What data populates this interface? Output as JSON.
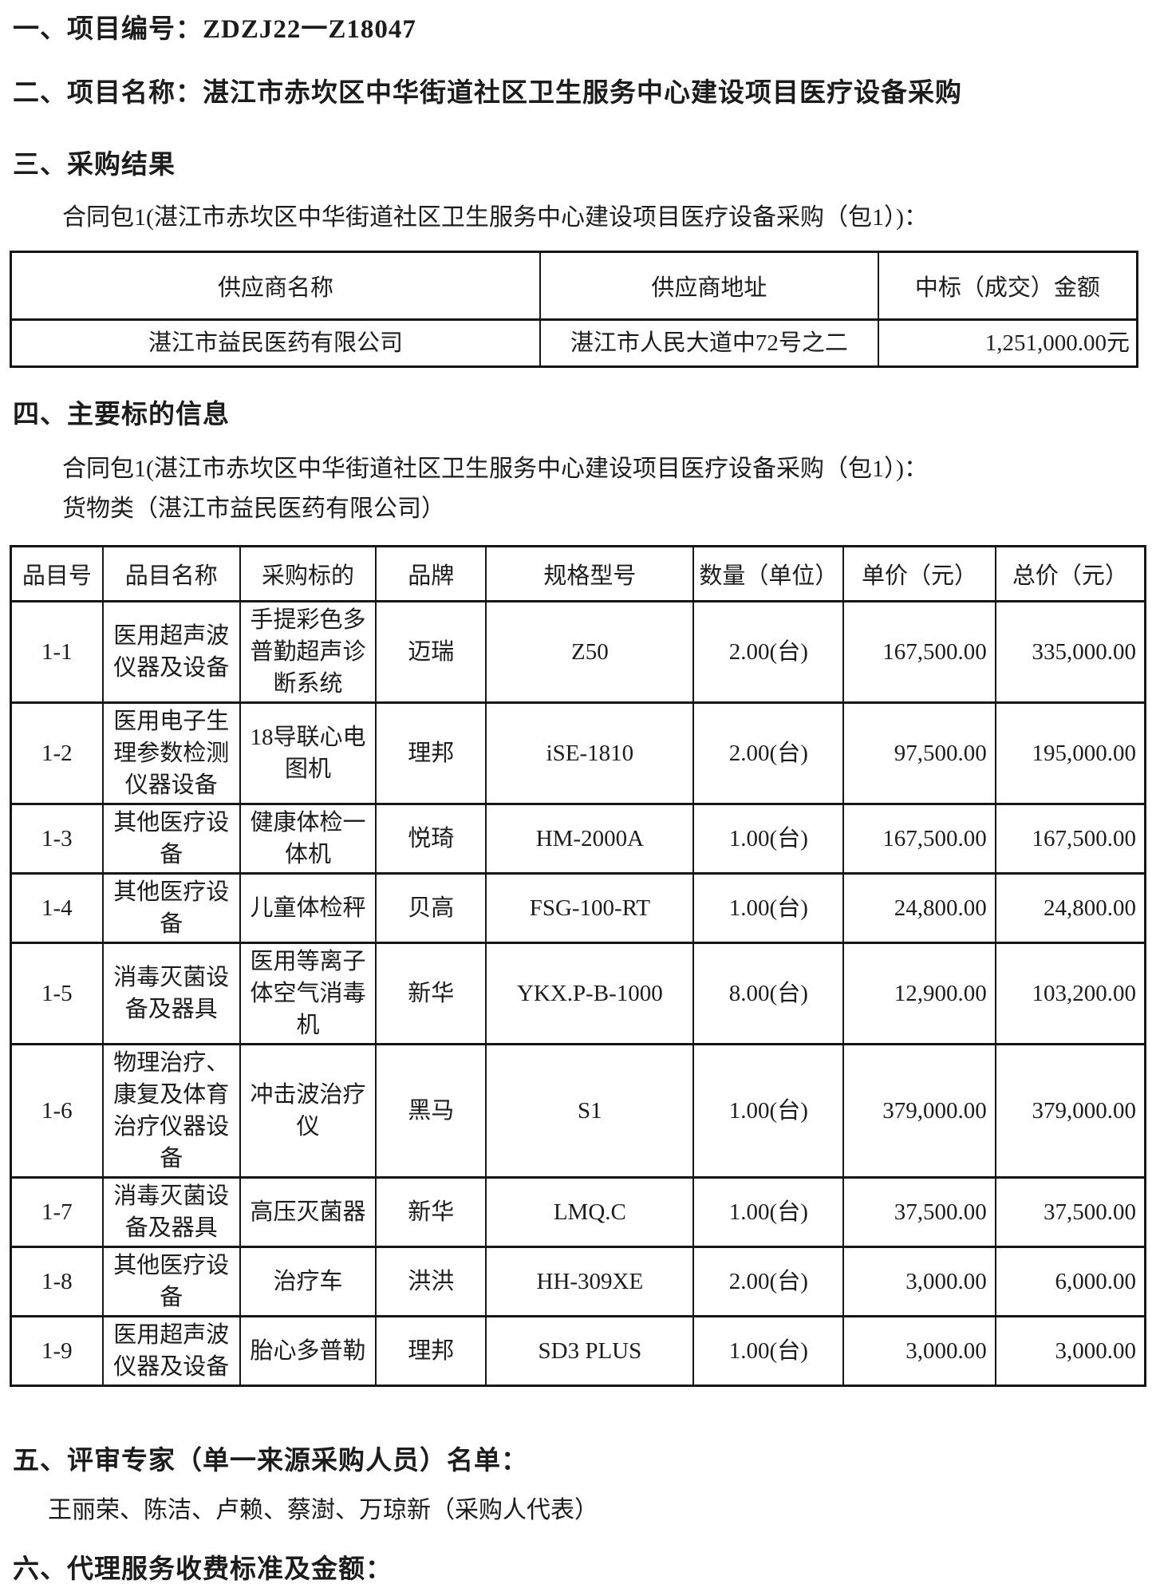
{
  "doc": {
    "section1_heading": "一、项目编号：ZDZJ22一Z18047",
    "section2_heading": "二、项目名称：湛江市赤坎区中华街道社区卫生服务中心建设项目医疗设备采购",
    "section3_heading": "三、采购结果",
    "section3_package_line": "合同包1(湛江市赤坎区中华街道社区卫生服务中心建设项目医疗设备采购（包1）)：",
    "result_table": {
      "headers": [
        "供应商名称",
        "供应商地址",
        "中标（成交）金额"
      ],
      "rows": [
        [
          "湛江市益民医药有限公司",
          "湛江市人民大道中72号之二",
          "1,251,000.00元"
        ]
      ]
    },
    "section4_heading": "四、主要标的信息",
    "section4_package_line": "合同包1(湛江市赤坎区中华街道社区卫生服务中心建设项目医疗设备采购（包1）)：",
    "section4_goods_line": "货物类（湛江市益民医药有限公司）",
    "items_table": {
      "headers": [
        "品目号",
        "品目名称",
        "采购标的",
        "品牌",
        "规格型号",
        "数量（单位）",
        "单价（元）",
        "总价（元）"
      ],
      "rows": [
        [
          "1-1",
          "医用超声波仪器及设备",
          "手提彩色多普勤超声诊断系统",
          "迈瑞",
          "Z50",
          "2.00(台)",
          "167,500.00",
          "335,000.00"
        ],
        [
          "1-2",
          "医用电子生理参数检测仪器设备",
          "18导联心电图机",
          "理邦",
          "iSE-1810",
          "2.00(台)",
          "97,500.00",
          "195,000.00"
        ],
        [
          "1-3",
          "其他医疗设备",
          "健康体检一体机",
          "悦琦",
          "HM-2000A",
          "1.00(台)",
          "167,500.00",
          "167,500.00"
        ],
        [
          "1-4",
          "其他医疗设备",
          "儿童体检秤",
          "贝高",
          "FSG-100-RT",
          "1.00(台)",
          "24,800.00",
          "24,800.00"
        ],
        [
          "1-5",
          "消毒灭菌设备及器具",
          "医用等离子体空气消毒机",
          "新华",
          "YKX.P-B-1000",
          "8.00(台)",
          "12,900.00",
          "103,200.00"
        ],
        [
          "1-6",
          "物理治疗、康复及体育治疗仪器设备",
          "冲击波治疗仪",
          "黑马",
          "S1",
          "1.00(台)",
          "379,000.00",
          "379,000.00"
        ],
        [
          "1-7",
          "消毒灭菌设备及器具",
          "高压灭菌器",
          "新华",
          "LMQ.C",
          "1.00(台)",
          "37,500.00",
          "37,500.00"
        ],
        [
          "1-8",
          "其他医疗设备",
          "治疗车",
          "洪洪",
          "HH-309XE",
          "2.00(台)",
          "3,000.00",
          "6,000.00"
        ],
        [
          "1-9",
          "医用超声波仪器及设备",
          "胎心多普勒",
          "理邦",
          "SD3 PLUS",
          "1.00(台)",
          "3,000.00",
          "3,000.00"
        ]
      ]
    },
    "section5_heading": "五、评审专家（单一来源采购人员）名单：",
    "section5_names": "王丽荣、陈洁、卢赖、蔡澍、万琼新（采购人代表）",
    "section6_heading": "六、代理服务收费标准及金额："
  }
}
